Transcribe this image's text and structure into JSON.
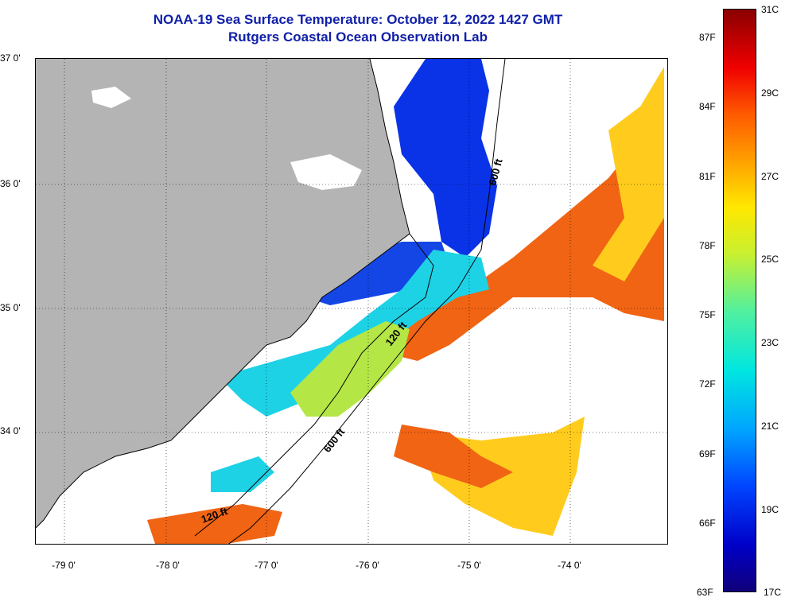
{
  "title": {
    "line1": "NOAA-19 Sea Surface Temperature:  October 12, 2022 1427 GMT",
    "line2": "Rutgers Coastal Ocean Observation Lab"
  },
  "axes": {
    "lat_labels": [
      "37 0'",
      "36 0'",
      "35 0'",
      "34 0'"
    ],
    "lon_labels": [
      "-79 0'",
      "-78 0'",
      "-77 0'",
      "-76 0'",
      "-75 0'",
      "-74 0'"
    ]
  },
  "contours": {
    "label_600_north": "600 ft",
    "label_120_mid": "120 ft",
    "label_600_south": "600 ft",
    "label_120_south": "120 ft"
  },
  "colorbar": {
    "fahrenheit": [
      "87F",
      "84F",
      "81F",
      "78F",
      "75F",
      "72F",
      "69F",
      "66F",
      "63F"
    ],
    "celsius": [
      "31C",
      "29C",
      "27C",
      "25C",
      "23C",
      "21C",
      "19C",
      "17C"
    ]
  },
  "colors": {
    "land": "#b4b4b4",
    "title": "#1020a8",
    "cold": "#0a32e6",
    "cool": "#1ed2e6",
    "mild": "#b4e646",
    "warm": "#ffcc1e",
    "hot": "#f06414"
  }
}
